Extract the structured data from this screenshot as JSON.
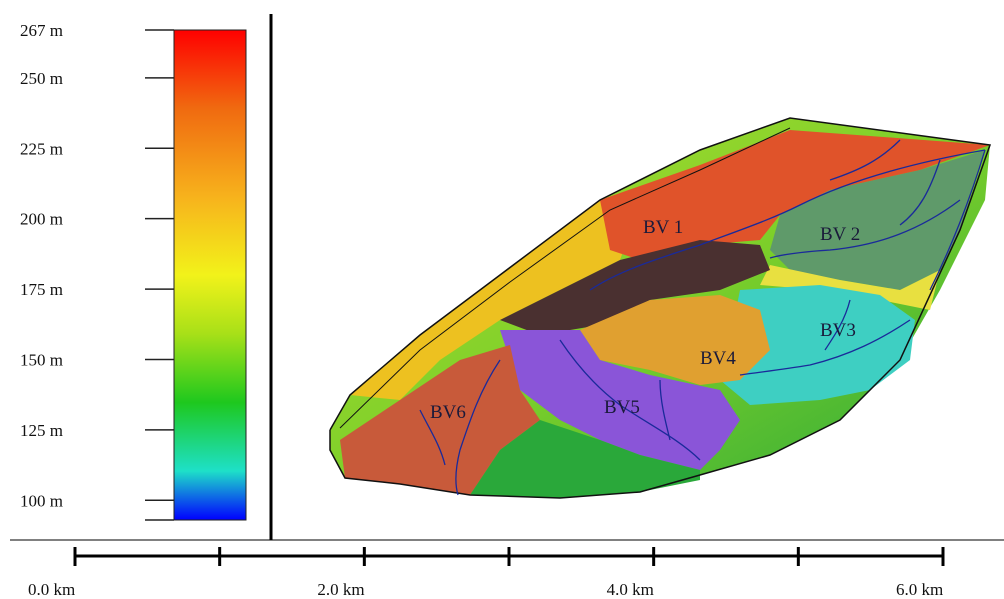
{
  "legend": {
    "ticks": [
      {
        "label": "267 m",
        "value": 267
      },
      {
        "label": "250 m",
        "value": 250
      },
      {
        "label": "225 m",
        "value": 225
      },
      {
        "label": "200 m",
        "value": 200
      },
      {
        "label": "175 m",
        "value": 175
      },
      {
        "label": "150 m",
        "value": 150
      },
      {
        "label": "125 m",
        "value": 125
      },
      {
        "label": "100 m",
        "value": 100
      }
    ],
    "min": 93,
    "max": 267,
    "colors": [
      "#ff0000",
      "#f06a10",
      "#f7b21c",
      "#f2f21a",
      "#a8e018",
      "#1ec81e",
      "#1ee0c8",
      "#0000ff"
    ]
  },
  "scalebar": {
    "labels": [
      {
        "text": "0.0 km",
        "km": 0
      },
      {
        "text": "2.0 km",
        "km": 2
      },
      {
        "text": "4.0 km",
        "km": 4
      },
      {
        "text": "6.0 km",
        "km": 6
      }
    ],
    "tick_km": [
      0,
      1,
      2,
      3,
      4,
      5,
      6
    ]
  },
  "basins": [
    {
      "id": "bv1",
      "label": "BV 1",
      "color": "#e0532a"
    },
    {
      "id": "bv2",
      "label": "BV 2",
      "color": "#5f9a6a"
    },
    {
      "id": "bv3",
      "label": "BV3",
      "color": "#3ecfc2"
    },
    {
      "id": "bv4",
      "label": "BV4",
      "color": "#e0a030"
    },
    {
      "id": "bv5",
      "label": "BV5",
      "color": "#8a55d8"
    },
    {
      "id": "bv6",
      "label": "BV6",
      "color": "#c85a3a"
    },
    {
      "id": "dark",
      "label": "",
      "color": "#4a3030"
    }
  ],
  "colors": {
    "river": "#1a2a9a",
    "outline": "#111111"
  }
}
